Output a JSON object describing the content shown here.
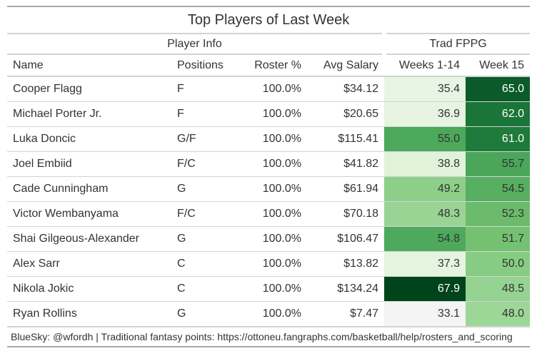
{
  "title": "Top Players of Last Week",
  "spanners": {
    "info": "Player Info",
    "fppg": "Trad FPPG"
  },
  "columns": [
    "Name",
    "Positions",
    "Roster %",
    "Avg Salary",
    "Weeks 1-14",
    "Week 15"
  ],
  "rows": [
    {
      "name": "Cooper Flagg",
      "pos": "F",
      "roster": "100.0%",
      "salary": "$34.12",
      "w114": "35.4",
      "w15": "65.0",
      "c1": "#e8f5e4",
      "c2": "#0b5b2a",
      "t1": "#333333",
      "t2": "#ffffff"
    },
    {
      "name": "Michael Porter Jr.",
      "pos": "F",
      "roster": "100.0%",
      "salary": "$20.65",
      "w114": "36.9",
      "w15": "62.0",
      "c1": "#e6f4e1",
      "c2": "#1b7538",
      "t1": "#333333",
      "t2": "#ffffff"
    },
    {
      "name": "Luka Doncic",
      "pos": "G/F",
      "roster": "100.0%",
      "salary": "$115.41",
      "w114": "55.0",
      "w15": "61.0",
      "c1": "#4ca85b",
      "c2": "#1f7b3b",
      "t1": "#333333",
      "t2": "#ffffff"
    },
    {
      "name": "Joel Embiid",
      "pos": "F/C",
      "roster": "100.0%",
      "salary": "$41.82",
      "w114": "38.8",
      "w15": "55.7",
      "c1": "#e0f3da",
      "c2": "#4ba65a",
      "t1": "#333333",
      "t2": "#333333"
    },
    {
      "name": "Cade Cunningham",
      "pos": "G",
      "roster": "100.0%",
      "salary": "$61.94",
      "w114": "49.2",
      "w15": "54.5",
      "c1": "#8dcf89",
      "c2": "#57af61",
      "t1": "#333333",
      "t2": "#333333"
    },
    {
      "name": "Victor Wembanyama",
      "pos": "F/C",
      "roster": "100.0%",
      "salary": "$70.18",
      "w114": "48.3",
      "w15": "52.3",
      "c1": "#99d495",
      "c2": "#6cbb6c",
      "t1": "#333333",
      "t2": "#333333"
    },
    {
      "name": "Shai Gilgeous-Alexander",
      "pos": "G",
      "roster": "100.0%",
      "salary": "$106.47",
      "w114": "54.8",
      "w15": "51.7",
      "c1": "#4ea95c",
      "c2": "#74c172",
      "t1": "#333333",
      "t2": "#333333"
    },
    {
      "name": "Alex Sarr",
      "pos": "C",
      "roster": "100.0%",
      "salary": "$13.82",
      "w114": "37.3",
      "w15": "50.0",
      "c1": "#e4f4df",
      "c2": "#86cc83",
      "t1": "#333333",
      "t2": "#333333"
    },
    {
      "name": "Nikola Jokic",
      "pos": "C",
      "roster": "100.0%",
      "salary": "$134.24",
      "w114": "67.9",
      "w15": "48.5",
      "c1": "#00441b",
      "c2": "#95d392",
      "t1": "#ffffff",
      "t2": "#333333"
    },
    {
      "name": "Ryan Rollins",
      "pos": "G",
      "roster": "100.0%",
      "salary": "$7.47",
      "w114": "33.1",
      "w15": "48.0",
      "c1": "#f4f4f4",
      "c2": "#9dd797",
      "t1": "#333333",
      "t2": "#333333"
    }
  ],
  "footer": "BlueSky: @wfordh | Traditional fantasy points: https://ottoneu.fangraphs.com/basketball/help/rosters_and_scoring",
  "chart_data": {
    "type": "table",
    "title": "Top Players of Last Week",
    "columns": [
      "Name",
      "Positions",
      "Roster %",
      "Avg Salary",
      "Weeks 1-14",
      "Week 15"
    ],
    "color_scale": "Greens"
  }
}
